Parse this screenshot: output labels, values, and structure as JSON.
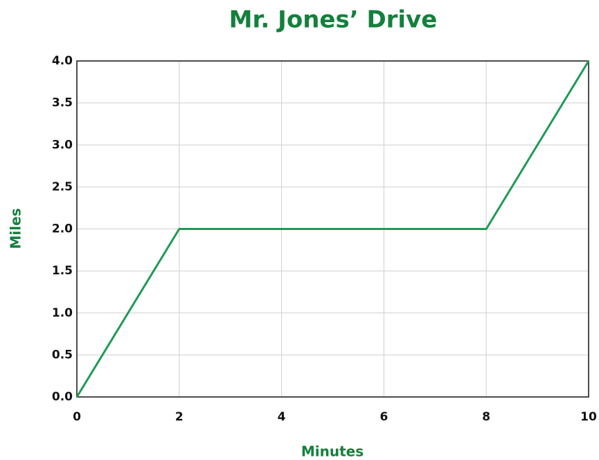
{
  "chart_data": {
    "type": "line",
    "title": "Mr. Jones’ Drive",
    "x_label": "Minutes",
    "y_label": "Miles",
    "x": [
      0,
      2,
      8,
      10
    ],
    "series": [
      {
        "name": "Mr. Jones’ Drive",
        "color": "#1f9a55",
        "values": [
          0,
          2,
          2,
          4
        ]
      }
    ],
    "xlim": [
      0,
      10
    ],
    "xticks": [
      0,
      2,
      4,
      6,
      8,
      10
    ],
    "ylim": [
      0,
      4
    ],
    "yticks": [
      {
        "value": 0,
        "label": "0.0"
      },
      {
        "value": 0.5,
        "label": "0.5"
      },
      {
        "value": 1,
        "label": "1.0"
      },
      {
        "value": 1.5,
        "label": "1.5"
      },
      {
        "value": 2,
        "label": "2.0"
      },
      {
        "value": 2.5,
        "label": "2.5"
      },
      {
        "value": 3,
        "label": "3.0"
      },
      {
        "value": 3.5,
        "label": "3.5"
      },
      {
        "value": 4,
        "label": "4.0"
      }
    ],
    "grid": true,
    "title_color": "#14803c"
  }
}
